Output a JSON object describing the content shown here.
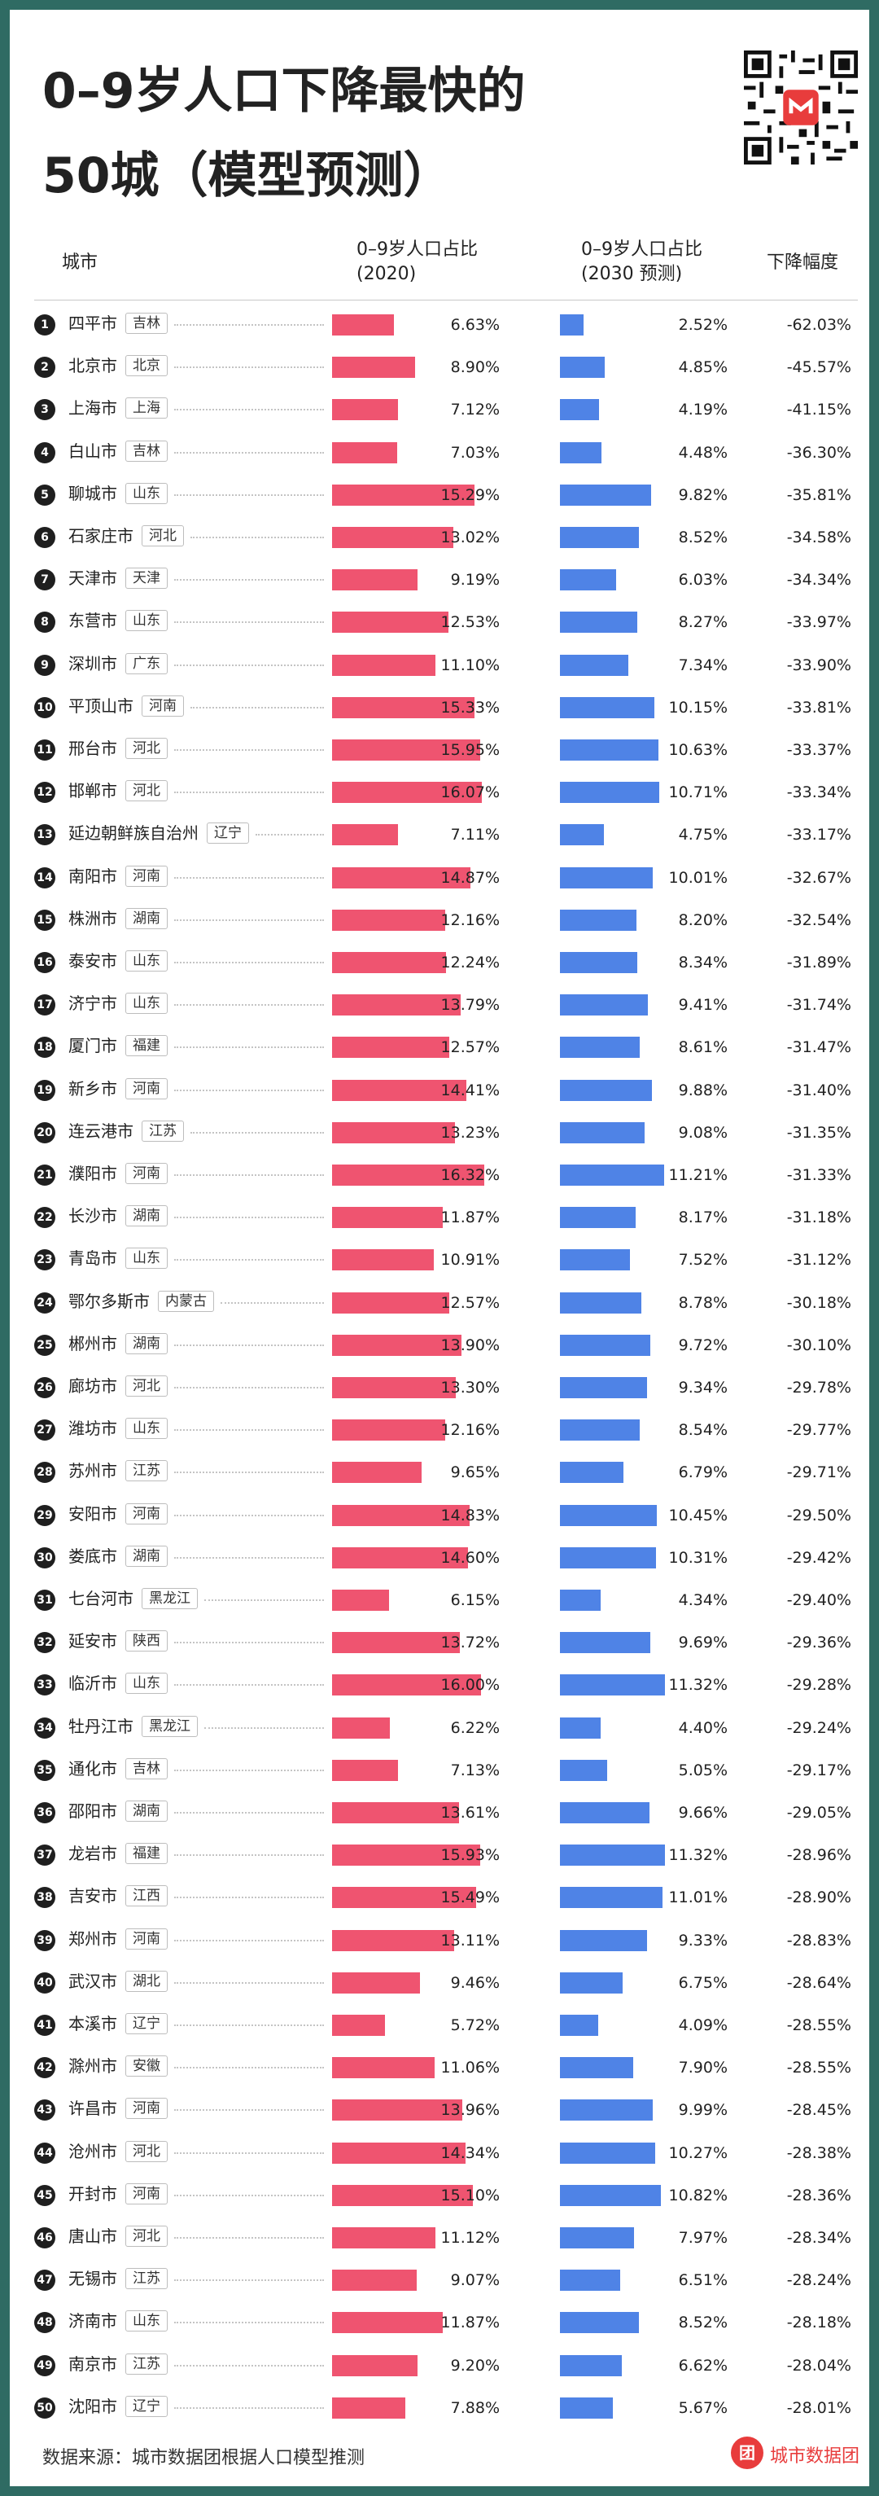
{
  "header": {
    "title_line1": "0–9岁人口下降最快的",
    "title_line2": "50城（模型预测）"
  },
  "columns": {
    "city": "城市",
    "share2020_l1": "0–9岁人口占比",
    "share2020_l2": "(2020)",
    "share2030_l1": "0–9岁人口占比",
    "share2030_l2": "(2030 预测)",
    "decline": "下降幅度"
  },
  "footer": {
    "source": "数据来源：城市数据团根据人口模型推测",
    "brand": "城市数据团"
  },
  "colors": {
    "bar2020": "#ef5470",
    "bar2030": "#4f83e6",
    "background": "#2f6b63"
  },
  "chart_data": {
    "type": "table",
    "rows": [
      {
        "rank": "1",
        "city": "四平市",
        "province": "吉林",
        "s2020": "6.63%",
        "s2030": "2.52%",
        "decline": "-62.03%"
      },
      {
        "rank": "2",
        "city": "北京市",
        "province": "北京",
        "s2020": "8.90%",
        "s2030": "4.85%",
        "decline": "-45.57%"
      },
      {
        "rank": "3",
        "city": "上海市",
        "province": "上海",
        "s2020": "7.12%",
        "s2030": "4.19%",
        "decline": "-41.15%"
      },
      {
        "rank": "4",
        "city": "白山市",
        "province": "吉林",
        "s2020": "7.03%",
        "s2030": "4.48%",
        "decline": "-36.30%"
      },
      {
        "rank": "5",
        "city": "聊城市",
        "province": "山东",
        "s2020": "15.29%",
        "s2030": "9.82%",
        "decline": "-35.81%"
      },
      {
        "rank": "6",
        "city": "石家庄市",
        "province": "河北",
        "s2020": "13.02%",
        "s2030": "8.52%",
        "decline": "-34.58%"
      },
      {
        "rank": "7",
        "city": "天津市",
        "province": "天津",
        "s2020": "9.19%",
        "s2030": "6.03%",
        "decline": "-34.34%"
      },
      {
        "rank": "8",
        "city": "东营市",
        "province": "山东",
        "s2020": "12.53%",
        "s2030": "8.27%",
        "decline": "-33.97%"
      },
      {
        "rank": "9",
        "city": "深圳市",
        "province": "广东",
        "s2020": "11.10%",
        "s2030": "7.34%",
        "decline": "-33.90%"
      },
      {
        "rank": "10",
        "city": "平顶山市",
        "province": "河南",
        "s2020": "15.33%",
        "s2030": "10.15%",
        "decline": "-33.81%"
      },
      {
        "rank": "11",
        "city": "邢台市",
        "province": "河北",
        "s2020": "15.95%",
        "s2030": "10.63%",
        "decline": "-33.37%"
      },
      {
        "rank": "12",
        "city": "邯郸市",
        "province": "河北",
        "s2020": "16.07%",
        "s2030": "10.71%",
        "decline": "-33.34%"
      },
      {
        "rank": "13",
        "city": "延边朝鲜族自治州",
        "province": "辽宁",
        "s2020": "7.11%",
        "s2030": "4.75%",
        "decline": "-33.17%"
      },
      {
        "rank": "14",
        "city": "南阳市",
        "province": "河南",
        "s2020": "14.87%",
        "s2030": "10.01%",
        "decline": "-32.67%"
      },
      {
        "rank": "15",
        "city": "株洲市",
        "province": "湖南",
        "s2020": "12.16%",
        "s2030": "8.20%",
        "decline": "-32.54%"
      },
      {
        "rank": "16",
        "city": "泰安市",
        "province": "山东",
        "s2020": "12.24%",
        "s2030": "8.34%",
        "decline": "-31.89%"
      },
      {
        "rank": "17",
        "city": "济宁市",
        "province": "山东",
        "s2020": "13.79%",
        "s2030": "9.41%",
        "decline": "-31.74%"
      },
      {
        "rank": "18",
        "city": "厦门市",
        "province": "福建",
        "s2020": "12.57%",
        "s2030": "8.61%",
        "decline": "-31.47%"
      },
      {
        "rank": "19",
        "city": "新乡市",
        "province": "河南",
        "s2020": "14.41%",
        "s2030": "9.88%",
        "decline": "-31.40%"
      },
      {
        "rank": "20",
        "city": "连云港市",
        "province": "江苏",
        "s2020": "13.23%",
        "s2030": "9.08%",
        "decline": "-31.35%"
      },
      {
        "rank": "21",
        "city": "濮阳市",
        "province": "河南",
        "s2020": "16.32%",
        "s2030": "11.21%",
        "decline": "-31.33%"
      },
      {
        "rank": "22",
        "city": "长沙市",
        "province": "湖南",
        "s2020": "11.87%",
        "s2030": "8.17%",
        "decline": "-31.18%"
      },
      {
        "rank": "23",
        "city": "青岛市",
        "province": "山东",
        "s2020": "10.91%",
        "s2030": "7.52%",
        "decline": "-31.12%"
      },
      {
        "rank": "24",
        "city": "鄂尔多斯市",
        "province": "内蒙古",
        "s2020": "12.57%",
        "s2030": "8.78%",
        "decline": "-30.18%"
      },
      {
        "rank": "25",
        "city": "郴州市",
        "province": "湖南",
        "s2020": "13.90%",
        "s2030": "9.72%",
        "decline": "-30.10%"
      },
      {
        "rank": "26",
        "city": "廊坊市",
        "province": "河北",
        "s2020": "13.30%",
        "s2030": "9.34%",
        "decline": "-29.78%"
      },
      {
        "rank": "27",
        "city": "潍坊市",
        "province": "山东",
        "s2020": "12.16%",
        "s2030": "8.54%",
        "decline": "-29.77%"
      },
      {
        "rank": "28",
        "city": "苏州市",
        "province": "江苏",
        "s2020": "9.65%",
        "s2030": "6.79%",
        "decline": "-29.71%"
      },
      {
        "rank": "29",
        "city": "安阳市",
        "province": "河南",
        "s2020": "14.83%",
        "s2030": "10.45%",
        "decline": "-29.50%"
      },
      {
        "rank": "30",
        "city": "娄底市",
        "province": "湖南",
        "s2020": "14.60%",
        "s2030": "10.31%",
        "decline": "-29.42%"
      },
      {
        "rank": "31",
        "city": "七台河市",
        "province": "黑龙江",
        "s2020": "6.15%",
        "s2030": "4.34%",
        "decline": "-29.40%"
      },
      {
        "rank": "32",
        "city": "延安市",
        "province": "陕西",
        "s2020": "13.72%",
        "s2030": "9.69%",
        "decline": "-29.36%"
      },
      {
        "rank": "33",
        "city": "临沂市",
        "province": "山东",
        "s2020": "16.00%",
        "s2030": "11.32%",
        "decline": "-29.28%"
      },
      {
        "rank": "34",
        "city": "牡丹江市",
        "province": "黑龙江",
        "s2020": "6.22%",
        "s2030": "4.40%",
        "decline": "-29.24%"
      },
      {
        "rank": "35",
        "city": "通化市",
        "province": "吉林",
        "s2020": "7.13%",
        "s2030": "5.05%",
        "decline": "-29.17%"
      },
      {
        "rank": "36",
        "city": "邵阳市",
        "province": "湖南",
        "s2020": "13.61%",
        "s2030": "9.66%",
        "decline": "-29.05%"
      },
      {
        "rank": "37",
        "city": "龙岩市",
        "province": "福建",
        "s2020": "15.93%",
        "s2030": "11.32%",
        "decline": "-28.96%"
      },
      {
        "rank": "38",
        "city": "吉安市",
        "province": "江西",
        "s2020": "15.49%",
        "s2030": "11.01%",
        "decline": "-28.90%"
      },
      {
        "rank": "39",
        "city": "郑州市",
        "province": "河南",
        "s2020": "13.11%",
        "s2030": "9.33%",
        "decline": "-28.83%"
      },
      {
        "rank": "40",
        "city": "武汉市",
        "province": "湖北",
        "s2020": "9.46%",
        "s2030": "6.75%",
        "decline": "-28.64%"
      },
      {
        "rank": "41",
        "city": "本溪市",
        "province": "辽宁",
        "s2020": "5.72%",
        "s2030": "4.09%",
        "decline": "-28.55%"
      },
      {
        "rank": "42",
        "city": "滁州市",
        "province": "安徽",
        "s2020": "11.06%",
        "s2030": "7.90%",
        "decline": "-28.55%"
      },
      {
        "rank": "43",
        "city": "许昌市",
        "province": "河南",
        "s2020": "13.96%",
        "s2030": "9.99%",
        "decline": "-28.45%"
      },
      {
        "rank": "44",
        "city": "沧州市",
        "province": "河北",
        "s2020": "14.34%",
        "s2030": "10.27%",
        "decline": "-28.38%"
      },
      {
        "rank": "45",
        "city": "开封市",
        "province": "河南",
        "s2020": "15.10%",
        "s2030": "10.82%",
        "decline": "-28.36%"
      },
      {
        "rank": "46",
        "city": "唐山市",
        "province": "河北",
        "s2020": "11.12%",
        "s2030": "7.97%",
        "decline": "-28.34%"
      },
      {
        "rank": "47",
        "city": "无锡市",
        "province": "江苏",
        "s2020": "9.07%",
        "s2030": "6.51%",
        "decline": "-28.24%"
      },
      {
        "rank": "48",
        "city": "济南市",
        "province": "山东",
        "s2020": "11.87%",
        "s2030": "8.52%",
        "decline": "-28.18%"
      },
      {
        "rank": "49",
        "city": "南京市",
        "province": "江苏",
        "s2020": "9.20%",
        "s2030": "6.62%",
        "decline": "-28.04%"
      },
      {
        "rank": "50",
        "city": "沈阳市",
        "province": "辽宁",
        "s2020": "7.88%",
        "s2030": "5.67%",
        "decline": "-28.01%"
      }
    ]
  }
}
